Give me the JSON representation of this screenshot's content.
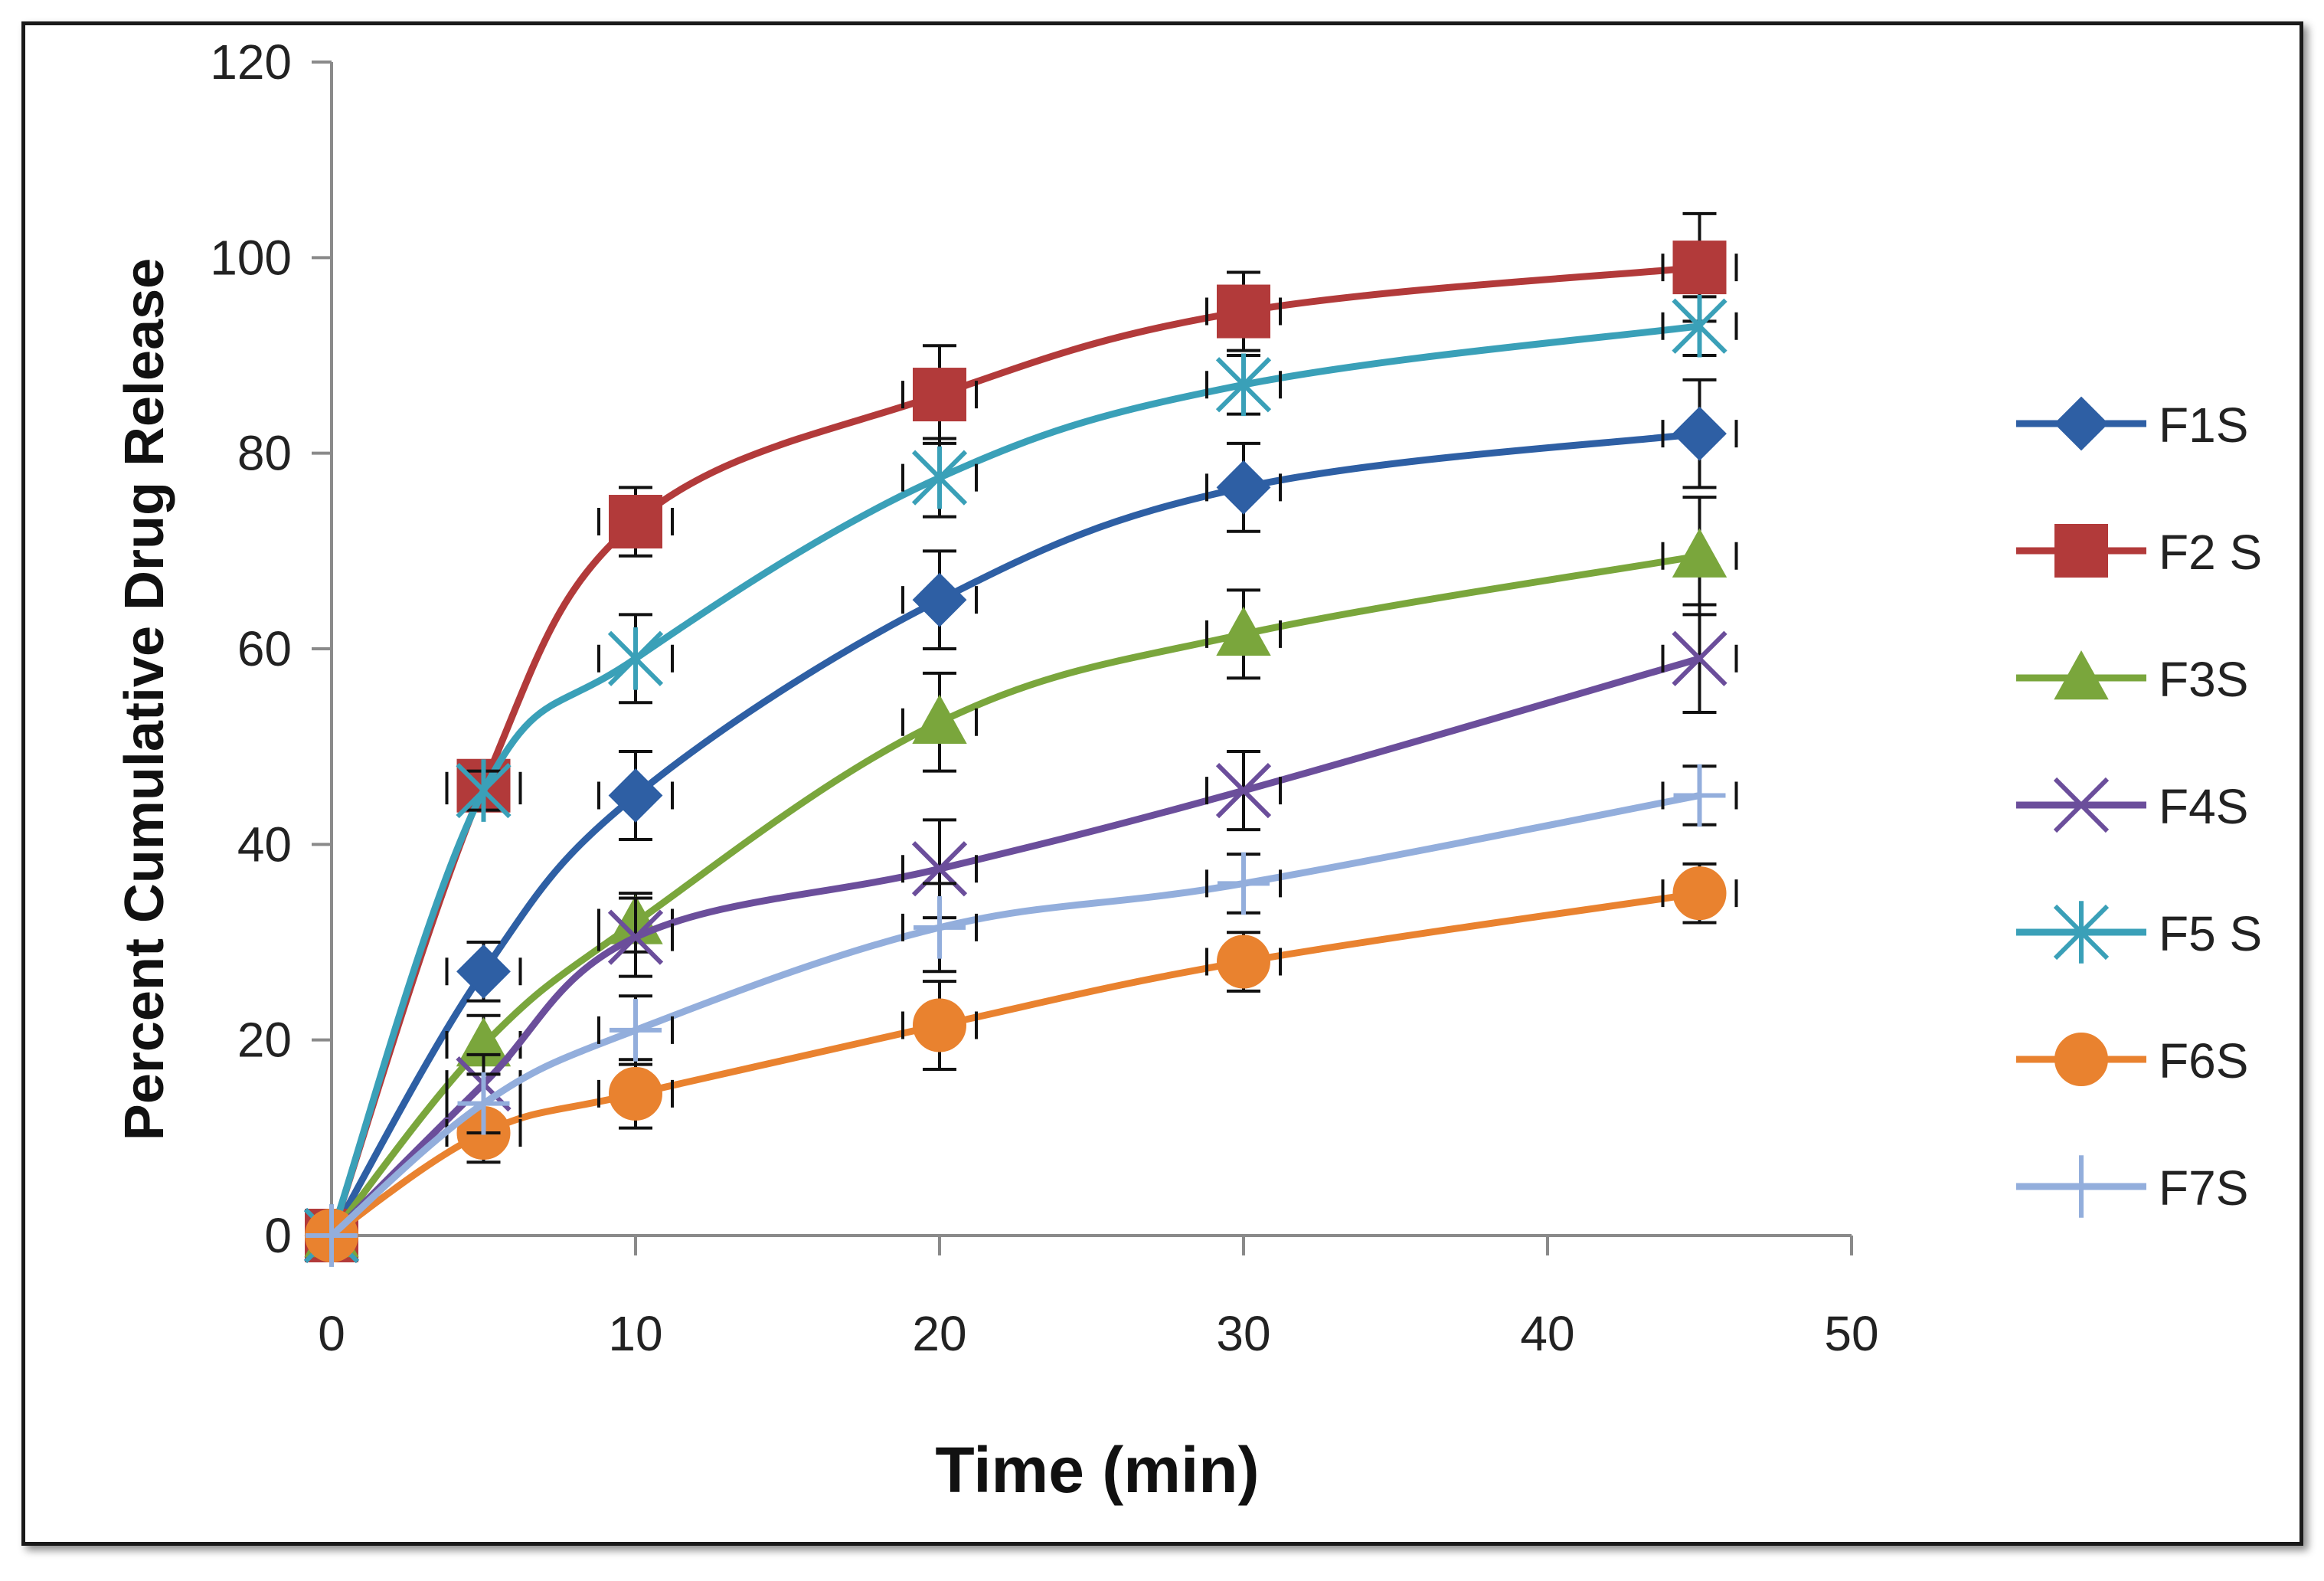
{
  "chart_data": {
    "type": "line",
    "title": "",
    "xlabel": "Time (min)",
    "ylabel": "Percent Cumulative Drug Release",
    "xlim": [
      0,
      50
    ],
    "ylim": [
      0,
      120
    ],
    "x_ticks": [
      0,
      10,
      20,
      30,
      40,
      50
    ],
    "y_ticks": [
      0,
      20,
      40,
      60,
      80,
      100,
      120
    ],
    "legend_position": "right",
    "grid": false,
    "x": [
      0,
      5,
      10,
      20,
      30,
      45
    ],
    "series": [
      {
        "name": "F1S",
        "color": "#2E5FA4",
        "marker": "diamond",
        "values": [
          0,
          27,
          45,
          65,
          76.5,
          82
        ],
        "errors": [
          0,
          3,
          4.5,
          5,
          4.5,
          5.5
        ]
      },
      {
        "name": "F2 S",
        "color": "#B23A3A",
        "marker": "square",
        "values": [
          0,
          46,
          73,
          86,
          94.5,
          99
        ],
        "errors": [
          0,
          2,
          3.5,
          5,
          4,
          5.5
        ]
      },
      {
        "name": "F3S",
        "color": "#7AA63C",
        "marker": "triangle",
        "values": [
          0,
          19.5,
          32,
          52.5,
          61.5,
          69.5
        ],
        "errors": [
          0,
          3,
          3,
          5,
          4.5,
          6
        ]
      },
      {
        "name": "F4S",
        "color": "#6B4E9B",
        "marker": "x",
        "values": [
          0,
          15.5,
          30.5,
          37.5,
          45.5,
          59
        ],
        "errors": [
          0,
          3,
          4,
          5,
          4,
          5.5
        ]
      },
      {
        "name": "F5 S",
        "color": "#3AA0B8",
        "marker": "star",
        "values": [
          0,
          45.5,
          59,
          77.5,
          87,
          93
        ],
        "errors": [
          0,
          2,
          4.5,
          4,
          3,
          3
        ]
      },
      {
        "name": "F6S",
        "color": "#E9822F",
        "marker": "circle",
        "values": [
          0,
          10.5,
          14.5,
          21.5,
          28,
          35
        ],
        "errors": [
          0,
          3,
          3.5,
          4.5,
          3,
          3
        ]
      },
      {
        "name": "F7S",
        "color": "#93AEDC",
        "marker": "plus",
        "values": [
          0,
          13.5,
          21,
          31.5,
          36,
          45
        ],
        "errors": [
          0,
          3,
          3.5,
          4.5,
          3,
          3
        ]
      }
    ]
  }
}
